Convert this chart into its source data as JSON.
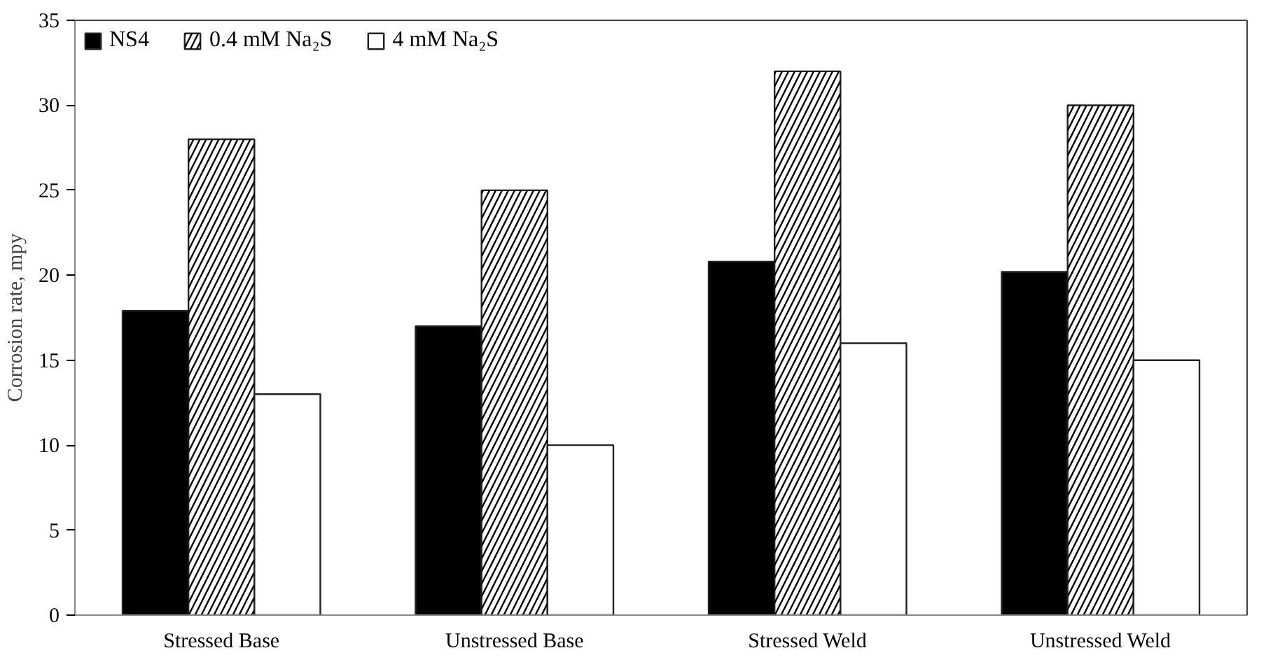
{
  "chart_data": {
    "type": "bar",
    "ylabel": "Corrosion rate, mpy",
    "categories": [
      "Stressed Base",
      "Unstressed Base",
      "Stressed Weld",
      "Unstressed Weld"
    ],
    "series": [
      {
        "name": "NS4",
        "color": "#000000",
        "values": [
          17.9,
          17.0,
          20.8,
          20.2
        ]
      },
      {
        "name": "0.4 mM Na₂S",
        "color": "#ffffff",
        "values": [
          28,
          25,
          32,
          30
        ]
      },
      {
        "name": "4 mM Na₂S",
        "color": "#ffffff",
        "values": [
          13,
          10,
          16,
          15
        ]
      }
    ],
    "ylim": [
      0,
      35
    ],
    "yticks": [
      0,
      5,
      10,
      15,
      20,
      25,
      30,
      35
    ],
    "grid": false,
    "legend": "top left"
  }
}
